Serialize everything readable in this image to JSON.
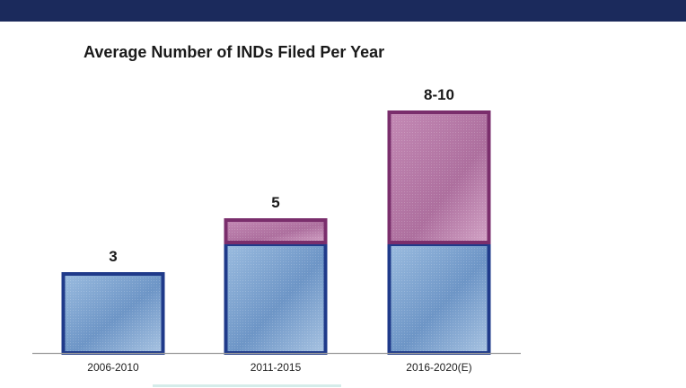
{
  "chart_data": {
    "type": "bar",
    "title": "Average Number of INDs Filed Per Year",
    "categories": [
      "2006-2010",
      "2011-2015",
      "2016-2020(E)"
    ],
    "series": [
      {
        "values": [
          3,
          4.1,
          4.1
        ]
      },
      {
        "values": [
          0,
          0.9,
          4.9
        ]
      }
    ],
    "data_labels": [
      "3",
      "5",
      "8-10"
    ],
    "ylim": [
      0,
      9
    ],
    "grid": false,
    "legend": "none",
    "colors": {
      "base_fill": "#7fa3cf",
      "base_border": "#1f3a8a",
      "top_fill": "#b97aa6",
      "top_border": "#7a2e6c",
      "axis": "#9a9a9a",
      "banner": "#1b2a5c"
    }
  }
}
